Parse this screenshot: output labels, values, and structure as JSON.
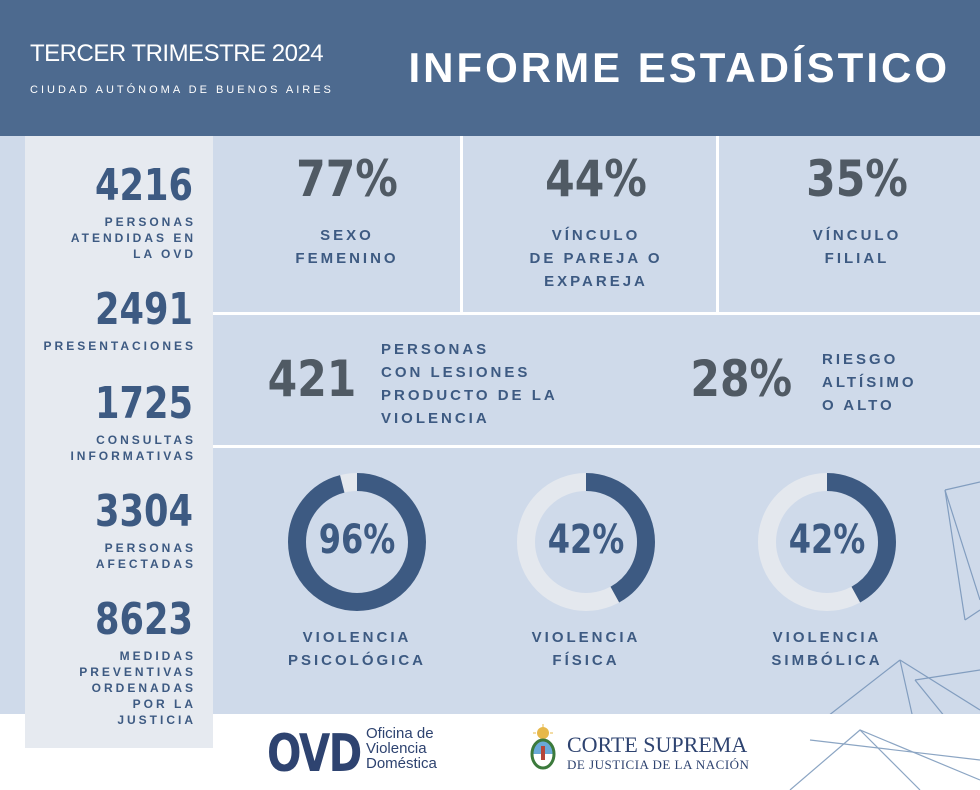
{
  "header": {
    "period": "TERCER TRIMESTRE 2024",
    "city": "CIUDAD AUTÓNOMA DE BUENOS AIRES",
    "title": "INFORME ESTADÍSTICO"
  },
  "sidebar": {
    "stats": [
      {
        "value": "4216",
        "label": "PERSONAS\nATENDIDAS EN\nLA OVD"
      },
      {
        "value": "2491",
        "label": "PRESENTACIONES"
      },
      {
        "value": "1725",
        "label": "CONSULTAS\nINFORMATIVAS"
      },
      {
        "value": "3304",
        "label": "PERSONAS\nAFECTADAS"
      },
      {
        "value": "8623",
        "label": "MEDIDAS\nPREVENTIVAS\nORDENADAS\nPOR LA\nJUSTICIA"
      }
    ]
  },
  "top_row": [
    {
      "value": "77%",
      "label": "SEXO\nFEMENINO"
    },
    {
      "value": "44%",
      "label": "VÍNCULO\nDE PAREJA O\nEXPAREJA"
    },
    {
      "value": "35%",
      "label": "VÍNCULO\nFILIAL"
    }
  ],
  "middle_row": {
    "injuries": {
      "value": "421",
      "label": "PERSONAS\nCON LESIONES\nPRODUCTO DE LA\nVIOLENCIA"
    },
    "risk": {
      "value": "28%",
      "label": "RIESGO\nALTÍSIMO\nO ALTO"
    }
  },
  "violence": [
    {
      "value": "96%",
      "percent": 96,
      "label": "VIOLENCIA\nPSICOLÓGICA"
    },
    {
      "value": "42%",
      "percent": 42,
      "label": "VIOLENCIA\nFÍSICA"
    },
    {
      "value": "42%",
      "percent": 42,
      "label": "VIOLENCIA\nSIMBÓLICA"
    }
  ],
  "colors": {
    "header_bg": "#4d6a8f",
    "panel_bg": "#cfdaea",
    "accent": "#3d5a82",
    "ring_track": "#e4e8ee",
    "number_gray": "#505a64"
  },
  "footer": {
    "ovd_logo": "OVD",
    "ovd_name": "Oficina de\nViolencia\nDoméstica",
    "court_line1": "CORTE SUPREMA",
    "court_line2": "DE JUSTICIA DE LA NACIÓN"
  }
}
